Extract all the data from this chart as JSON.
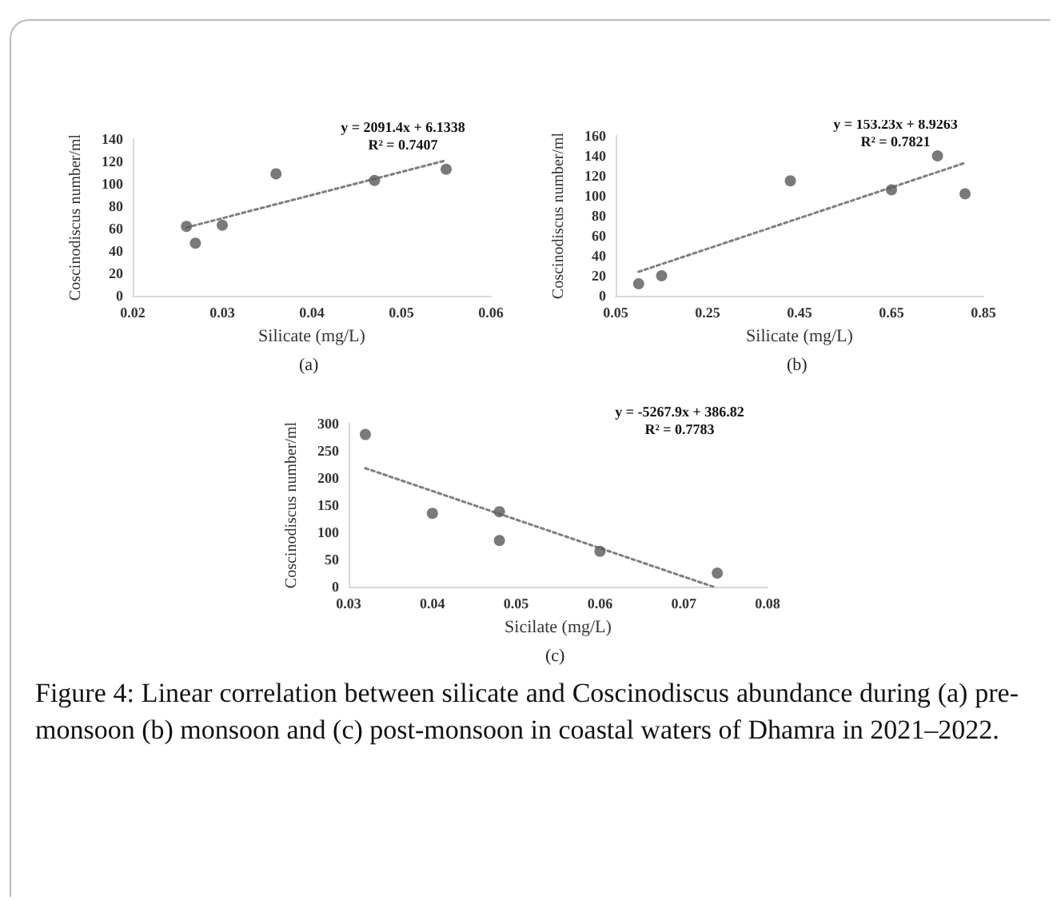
{
  "chart_data": [
    {
      "type": "scatter",
      "subtitle": "(a)",
      "xlabel": "Silicate (mg/L)",
      "ylabel": "Coscinodiscus number/ml",
      "xlim": [
        0.02,
        0.06
      ],
      "xticks": [
        0.02,
        0.03,
        0.04,
        0.05,
        0.06
      ],
      "ylim": [
        0,
        140
      ],
      "yticks": [
        0,
        20,
        40,
        60,
        80,
        100,
        120,
        140
      ],
      "annotations": [
        "y = 2091.4x + 6.1338",
        "R² = 0.7407"
      ],
      "series": [
        {
          "type": "scatter",
          "marker": "circle",
          "color": "#595959",
          "x": [
            0.026,
            0.027,
            0.03,
            0.036,
            0.047,
            0.055
          ],
          "values": [
            62,
            47,
            63,
            109,
            103,
            113
          ]
        },
        {
          "type": "line",
          "marker": "none",
          "line_style": "dotted",
          "color": "#7f7f7f",
          "x": [
            0.026,
            0.055
          ],
          "values": [
            61,
            121
          ]
        }
      ]
    },
    {
      "type": "scatter",
      "subtitle": "(b)",
      "xlabel": "Silicate (mg/L)",
      "ylabel": "Coscinodiscus number/ml",
      "xlim": [
        0.05,
        0.85
      ],
      "xticks": [
        0.05,
        0.25,
        0.45,
        0.65,
        0.85
      ],
      "ylim": [
        0,
        160
      ],
      "yticks": [
        0,
        20,
        40,
        60,
        80,
        100,
        120,
        140,
        160
      ],
      "annotations": [
        "y = 153.23x + 8.9263",
        "R² = 0.7821"
      ],
      "series": [
        {
          "type": "scatter",
          "marker": "circle",
          "color": "#595959",
          "x": [
            0.1,
            0.15,
            0.43,
            0.65,
            0.75,
            0.81
          ],
          "values": [
            12,
            20,
            115,
            106,
            140,
            102
          ]
        },
        {
          "type": "line",
          "marker": "none",
          "line_style": "dotted",
          "color": "#7f7f7f",
          "x": [
            0.1,
            0.81
          ],
          "values": [
            24,
            133
          ]
        }
      ]
    },
    {
      "type": "scatter",
      "subtitle": "(c)",
      "xlabel": "Sicilate (mg/L)",
      "ylabel": "Coscinodiscus number/ml",
      "xlim": [
        0.03,
        0.08
      ],
      "xticks": [
        0.03,
        0.04,
        0.05,
        0.06,
        0.07,
        0.08
      ],
      "ylim": [
        0,
        300
      ],
      "yticks": [
        0,
        50,
        100,
        150,
        200,
        250,
        300
      ],
      "annotations": [
        "y = -5267.9x + 386.82",
        "R² = 0.7783"
      ],
      "series": [
        {
          "type": "scatter",
          "marker": "circle",
          "color": "#595959",
          "x": [
            0.032,
            0.04,
            0.048,
            0.048,
            0.06,
            0.074
          ],
          "values": [
            280,
            135,
            138,
            85,
            65,
            25
          ]
        },
        {
          "type": "line",
          "marker": "none",
          "line_style": "dotted",
          "color": "#7f7f7f",
          "x": [
            0.032,
            0.0735
          ],
          "values": [
            218,
            0
          ]
        }
      ]
    },
    {
      "type": "other",
      "annotations": [
        "Figure 4: Linear correlation between silicate and Coscinodiscus abundance during (a) pre-monsoon (b) monsoon and (c) post-monsoon in coastal waters of Dhamra in 2021–2022."
      ]
    }
  ]
}
